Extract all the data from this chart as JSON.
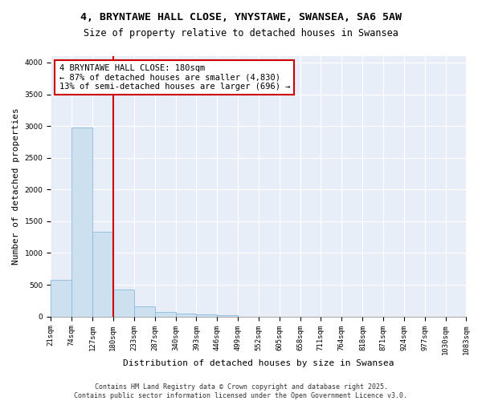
{
  "title_line1": "4, BRYNTAWE HALL CLOSE, YNYSTAWE, SWANSEA, SA6 5AW",
  "title_line2": "Size of property relative to detached houses in Swansea",
  "xlabel": "Distribution of detached houses by size in Swansea",
  "ylabel": "Number of detached properties",
  "bar_color": "#cce0f0",
  "bar_edge_color": "#88bbdd",
  "background_color": "#e8eef8",
  "grid_color": "#ffffff",
  "figure_bg": "#ffffff",
  "vline_x": 180,
  "vline_color": "#cc0000",
  "annotation_text": "4 BRYNTAWE HALL CLOSE: 180sqm\n← 87% of detached houses are smaller (4,830)\n13% of semi-detached houses are larger (696) →",
  "annotation_box_color": "#ffffff",
  "annotation_box_edge": "#cc0000",
  "bins": [
    21,
    74,
    127,
    180,
    233,
    287,
    340,
    393,
    446,
    499,
    552,
    605,
    658,
    711,
    764,
    818,
    871,
    924,
    977,
    1030,
    1083
  ],
  "bar_heights": [
    580,
    2970,
    1340,
    430,
    160,
    75,
    45,
    30,
    25,
    0,
    0,
    0,
    0,
    0,
    0,
    0,
    0,
    0,
    0,
    0
  ],
  "ylim": [
    0,
    4100
  ],
  "yticks": [
    0,
    500,
    1000,
    1500,
    2000,
    2500,
    3000,
    3500,
    4000
  ],
  "tick_labels": [
    "21sqm",
    "74sqm",
    "127sqm",
    "180sqm",
    "233sqm",
    "287sqm",
    "340sqm",
    "393sqm",
    "446sqm",
    "499sqm",
    "552sqm",
    "605sqm",
    "658sqm",
    "711sqm",
    "764sqm",
    "818sqm",
    "871sqm",
    "924sqm",
    "977sqm",
    "1030sqm",
    "1083sqm"
  ],
  "footer_text": "Contains HM Land Registry data © Crown copyright and database right 2025.\nContains public sector information licensed under the Open Government Licence v3.0.",
  "title_fontsize": 9.5,
  "subtitle_fontsize": 8.5,
  "axis_label_fontsize": 8,
  "tick_fontsize": 6.5,
  "annotation_fontsize": 7.5,
  "footer_fontsize": 6
}
